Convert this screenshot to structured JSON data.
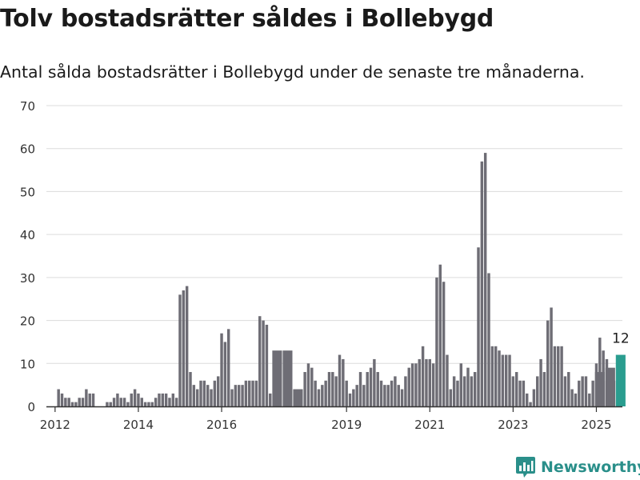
{
  "title": "Tolv bostadsrätter såldes i Bollebygd",
  "subtitle": "Antal sålda bostadsrätter i Bollebygd under de senaste tre månaderna.",
  "brand": "Newsworthy",
  "colors": {
    "bar": "#6e6d75",
    "highlight": "#2a9d8f",
    "grid": "#dcdcdc",
    "brand": "#2a8f8a"
  },
  "chart_data": {
    "type": "bar",
    "title": "",
    "xlabel": "",
    "ylabel": "",
    "ylim": [
      0,
      70
    ],
    "yticks": [
      0,
      10,
      20,
      30,
      40,
      50,
      60,
      70
    ],
    "grid": true,
    "xaxis": {
      "start": "2011-11",
      "end": "2025-09"
    },
    "xtick_labels": [
      {
        "label": "2012",
        "date": "2012-01"
      },
      {
        "label": "2014",
        "date": "2014-01"
      },
      {
        "label": "2016",
        "date": "2016-01"
      },
      {
        "label": "2019",
        "date": "2019-01"
      },
      {
        "label": "2021",
        "date": "2021-01"
      },
      {
        "label": "2023",
        "date": "2023-01"
      },
      {
        "label": "2025",
        "date": "2025-01"
      }
    ],
    "series": [
      {
        "period": "month",
        "x": [
          "2012-02",
          "2012-03",
          "2012-04",
          "2012-05",
          "2012-06",
          "2012-07",
          "2012-08",
          "2012-09",
          "2012-10",
          "2012-11",
          "2012-12",
          "2013-01",
          "2013-02",
          "2013-03",
          "2013-04",
          "2013-05",
          "2013-06",
          "2013-07",
          "2013-08",
          "2013-09",
          "2013-10",
          "2013-11",
          "2013-12",
          "2014-01",
          "2014-02",
          "2014-03",
          "2014-04",
          "2014-05",
          "2014-06",
          "2014-07",
          "2014-08",
          "2014-09",
          "2014-10",
          "2014-11",
          "2014-12",
          "2015-01",
          "2015-02",
          "2015-03",
          "2015-04",
          "2015-05",
          "2015-06",
          "2015-07",
          "2015-08",
          "2015-09",
          "2015-10",
          "2015-11",
          "2015-12",
          "2016-01",
          "2016-02",
          "2016-03",
          "2016-04",
          "2016-05",
          "2016-06",
          "2016-07",
          "2016-08",
          "2016-09",
          "2016-10",
          "2016-11",
          "2016-12",
          "2017-01",
          "2017-02",
          "2017-03"
        ],
        "values": [
          4,
          3,
          2,
          2,
          1,
          1,
          2,
          2,
          4,
          3,
          3,
          0,
          0,
          0,
          1,
          1,
          2,
          3,
          2,
          2,
          1,
          3,
          4,
          3,
          2,
          1,
          1,
          1,
          2,
          3,
          3,
          3,
          2,
          3,
          2,
          26,
          27,
          28,
          8,
          5,
          4,
          6,
          6,
          5,
          4,
          6,
          7,
          17,
          15,
          18,
          4,
          5,
          5,
          5,
          6,
          6,
          6,
          6,
          21,
          20,
          19,
          3
        ]
      },
      {
        "period": "quarter",
        "x": [
          "2017-04",
          "2017-07",
          "2017-10"
        ],
        "values": [
          13,
          13,
          4
        ]
      },
      {
        "period": "month",
        "x": [
          "2018-01",
          "2018-02",
          "2018-03",
          "2018-04",
          "2018-05",
          "2018-06",
          "2018-07",
          "2018-08",
          "2018-09",
          "2018-10",
          "2018-11",
          "2018-12",
          "2019-01",
          "2019-02",
          "2019-03",
          "2019-04",
          "2019-05",
          "2019-06",
          "2019-07",
          "2019-08",
          "2019-09",
          "2019-10",
          "2019-11",
          "2019-12",
          "2020-01",
          "2020-02",
          "2020-03",
          "2020-04",
          "2020-05",
          "2020-06",
          "2020-07",
          "2020-08",
          "2020-09",
          "2020-10",
          "2020-11",
          "2020-12",
          "2021-01",
          "2021-02",
          "2021-03",
          "2021-04",
          "2021-05",
          "2021-06",
          "2021-07",
          "2021-08",
          "2021-09",
          "2021-10",
          "2021-11",
          "2021-12",
          "2022-01",
          "2022-02",
          "2022-03",
          "2022-04",
          "2022-05",
          "2022-06",
          "2022-07",
          "2022-08",
          "2022-09",
          "2022-10",
          "2022-11",
          "2022-12",
          "2023-01",
          "2023-02",
          "2023-03",
          "2023-04",
          "2023-05",
          "2023-06",
          "2023-07",
          "2023-08",
          "2023-09",
          "2023-10",
          "2023-11",
          "2023-12",
          "2024-01",
          "2024-02",
          "2024-03",
          "2024-04",
          "2024-05",
          "2024-06",
          "2024-07",
          "2024-08",
          "2024-09",
          "2024-10",
          "2024-11",
          "2024-12",
          "2025-01",
          "2025-02",
          "2025-03",
          "2025-04",
          "2025-05",
          "2025-06",
          "2025-07"
        ],
        "values": [
          8,
          10,
          9,
          6,
          4,
          5,
          6,
          8,
          8,
          7,
          12,
          11,
          6,
          3,
          4,
          5,
          8,
          5,
          8,
          9,
          11,
          8,
          6,
          5,
          5,
          6,
          7,
          5,
          4,
          7,
          9,
          10,
          10,
          11,
          14,
          11,
          11,
          10,
          30,
          33,
          29,
          12,
          4,
          7,
          6,
          10,
          7,
          9,
          7,
          8,
          37,
          57,
          59,
          31,
          14,
          14,
          13,
          12,
          12,
          12,
          7,
          8,
          6,
          6,
          3,
          1,
          4,
          7,
          11,
          8,
          20,
          23,
          14,
          14,
          14,
          7,
          8,
          4,
          3,
          6,
          7,
          7,
          3,
          6,
          10,
          16,
          13,
          11,
          5,
          6,
          6
        ]
      },
      {
        "period": "quarter",
        "x": [
          "2025-01",
          "2025-04"
        ],
        "values": [
          8,
          6
        ]
      },
      {
        "period": "quarter",
        "x": [
          "2025-04"
        ],
        "values": [
          9
        ]
      }
    ],
    "highlight": {
      "x": "2025-07",
      "value": 12,
      "label": "12"
    }
  }
}
